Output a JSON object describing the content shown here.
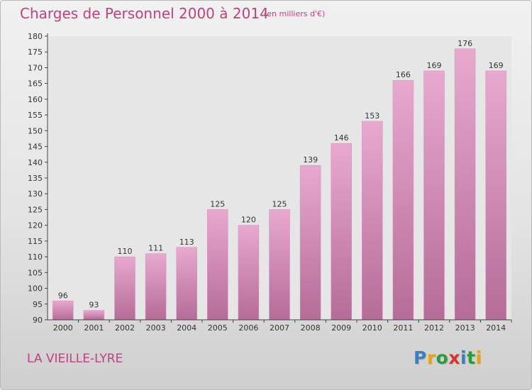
{
  "header": {
    "title": "Charges de Personnel 2000 à 2014",
    "subtitle": "(en milliers d'€)"
  },
  "footer": {
    "commune": "LA VIEILLE-LYRE",
    "logo_letters": [
      "P",
      "r",
      "o",
      "x",
      "i",
      "t",
      "i"
    ],
    "logo_colors": [
      "#3a7fc0",
      "#e8a21a",
      "#2e9a3e",
      "#d9342b",
      "#3a7fc0",
      "#2e9a3e",
      "#e8a21a"
    ]
  },
  "colors": {
    "accent": "#c0417f",
    "bar_top": "#e8a9cf",
    "bar_bottom": "#b56c98"
  },
  "chart_data": {
    "type": "bar",
    "title": "Charges de Personnel 2000 à 2014",
    "subtitle": "(en milliers d'€)",
    "xlabel": "",
    "ylabel": "",
    "categories": [
      "2000",
      "2001",
      "2002",
      "2003",
      "2004",
      "2005",
      "2006",
      "2007",
      "2008",
      "2009",
      "2010",
      "2011",
      "2012",
      "2013",
      "2014"
    ],
    "values": [
      96,
      93,
      110,
      111,
      113,
      125,
      120,
      125,
      139,
      146,
      153,
      166,
      169,
      176,
      169
    ],
    "ylim": [
      90,
      180
    ],
    "yticks": [
      90,
      95,
      100,
      105,
      110,
      115,
      120,
      125,
      130,
      135,
      140,
      145,
      150,
      155,
      160,
      165,
      170,
      175,
      180
    ],
    "grid": false,
    "data_labels": true
  }
}
